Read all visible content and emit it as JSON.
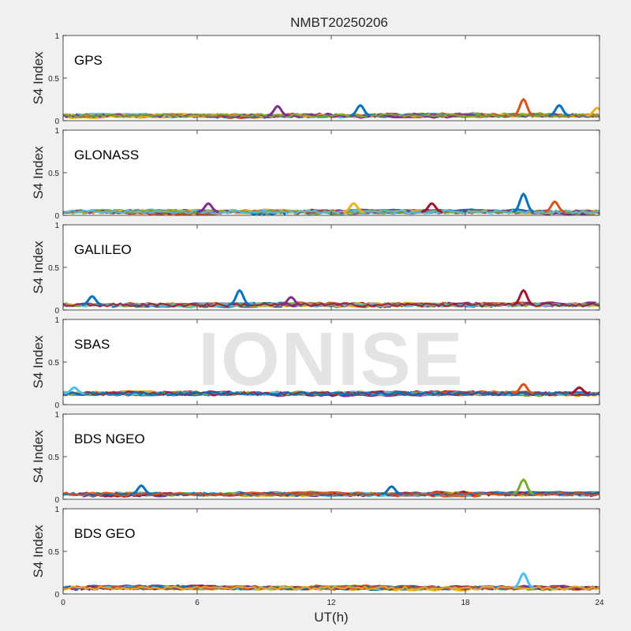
{
  "chart_data": {
    "type": "scatter",
    "title": "NMBT20250206",
    "xlabel": "UT(h)",
    "ylabel": "S4 Index",
    "xlim": [
      0,
      24
    ],
    "ylim": [
      0,
      1
    ],
    "xticks": [
      "0",
      "6",
      "12",
      "18",
      "24"
    ],
    "yticks": [
      "0",
      "0.5",
      "1"
    ],
    "watermark": "IONISE",
    "colors": [
      "#0072BD",
      "#D95319",
      "#EDB120",
      "#7E2F8E",
      "#77AC30",
      "#4DBEEE",
      "#A2142F"
    ],
    "panels": [
      {
        "system": "GPS",
        "base_level": 0.06,
        "peaks": [
          [
            9.6,
            0.17
          ],
          [
            13.3,
            0.18
          ],
          [
            20.6,
            0.25
          ],
          [
            22.2,
            0.18
          ],
          [
            23.9,
            0.15
          ]
        ]
      },
      {
        "system": "GLONASS",
        "base_level": 0.04,
        "peaks": [
          [
            6.5,
            0.14
          ],
          [
            13.0,
            0.14
          ],
          [
            16.5,
            0.14
          ],
          [
            20.6,
            0.25
          ],
          [
            22.0,
            0.16
          ]
        ]
      },
      {
        "system": "GALILEO",
        "base_level": 0.06,
        "peaks": [
          [
            1.3,
            0.16
          ],
          [
            7.9,
            0.23
          ],
          [
            10.2,
            0.15
          ],
          [
            20.6,
            0.23
          ]
        ]
      },
      {
        "system": "SBAS",
        "base_level": 0.13,
        "peaks": [
          [
            0.5,
            0.2
          ],
          [
            20.6,
            0.24
          ],
          [
            23.1,
            0.2
          ]
        ]
      },
      {
        "system": "BDS NGEO",
        "base_level": 0.06,
        "peaks": [
          [
            3.5,
            0.16
          ],
          [
            14.7,
            0.15
          ],
          [
            20.6,
            0.23
          ]
        ]
      },
      {
        "system": "BDS GEO",
        "base_level": 0.07,
        "peaks": [
          [
            20.6,
            0.24
          ]
        ]
      }
    ]
  }
}
